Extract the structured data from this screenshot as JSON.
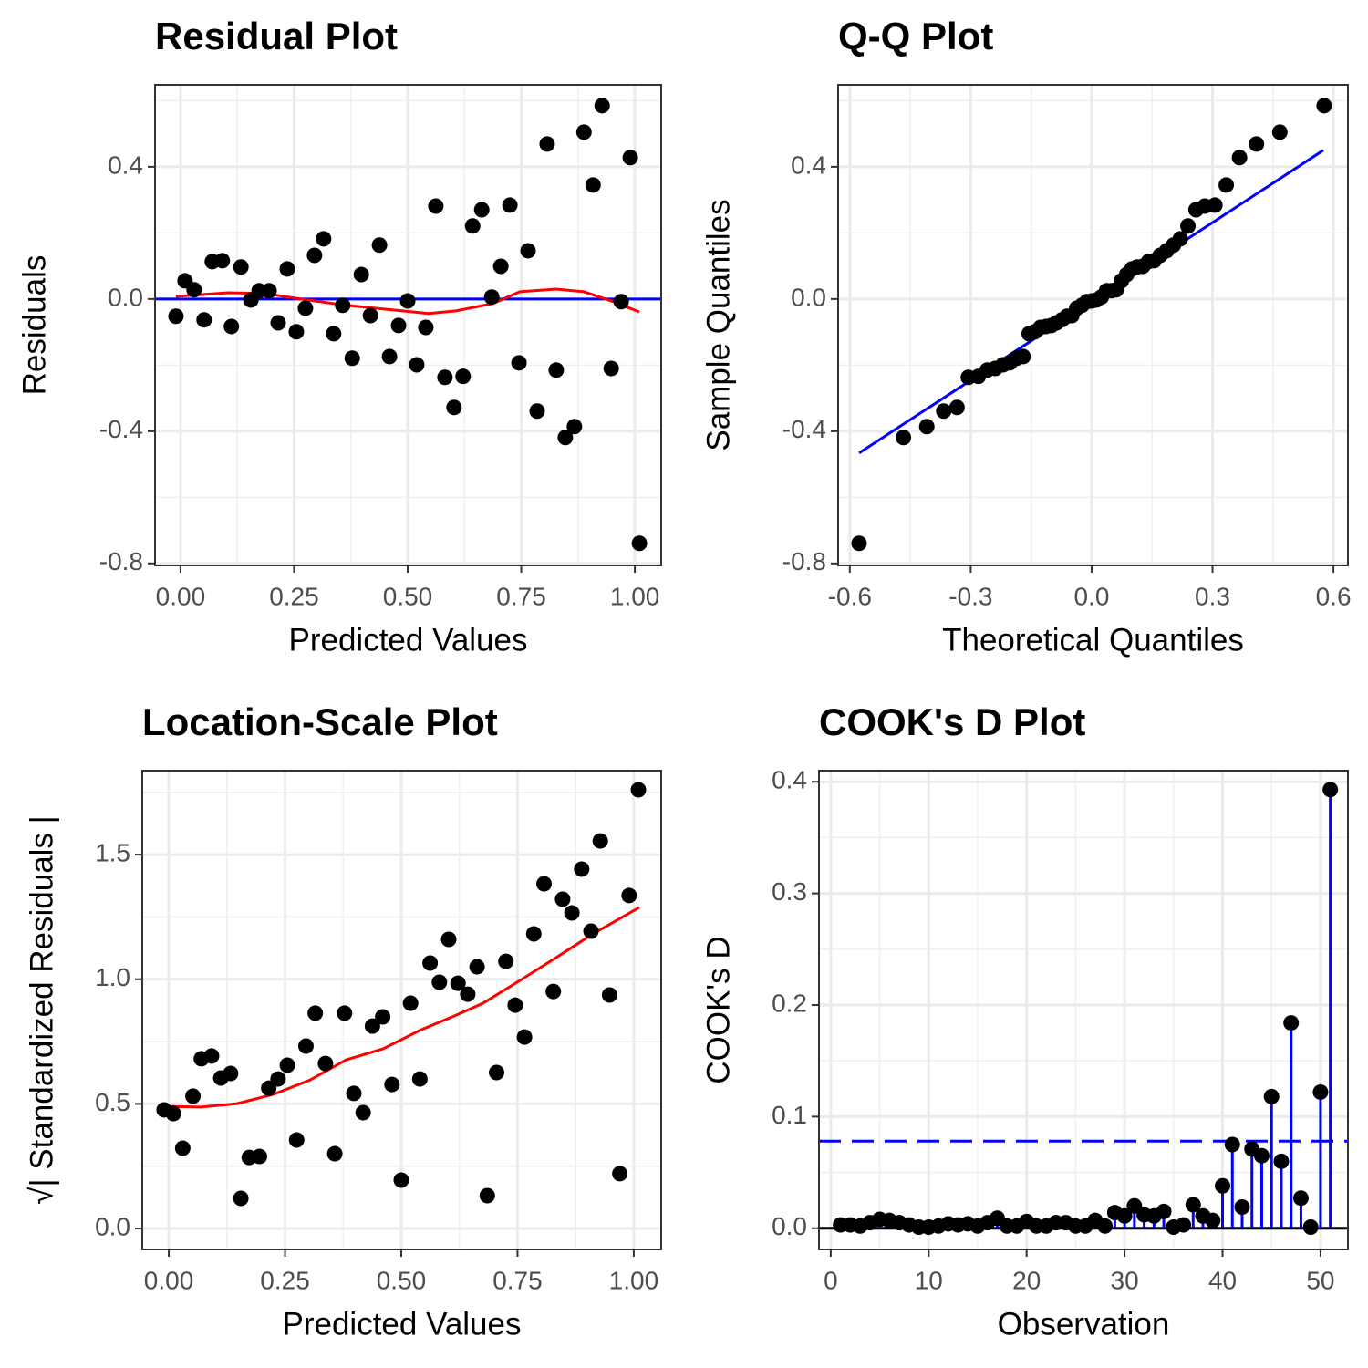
{
  "chart_data": [
    {
      "type": "scatter",
      "title": "Residual Plot",
      "xlabel": "Predicted Values",
      "ylabel": "Residuals",
      "xlim": [
        -0.056,
        1.058
      ],
      "ylim": [
        -0.806,
        0.648
      ],
      "xticks": [
        {
          "value": 0,
          "label": "0.00"
        },
        {
          "value": 0.25,
          "label": "0.25"
        },
        {
          "value": 0.5,
          "label": "0.50"
        },
        {
          "value": 0.75,
          "label": "0.75"
        },
        {
          "value": 1,
          "label": "1.00"
        }
      ],
      "yticks": [
        {
          "value": -0.8,
          "label": "-0.8"
        },
        {
          "value": -0.4,
          "label": "-0.4"
        },
        {
          "value": 0,
          "label": "0.0"
        },
        0.4
      ],
      "grid": true,
      "points": {
        "color": "#000000",
        "x": [
          -0.01,
          0.01,
          0.03,
          0.052,
          0.07,
          0.092,
          0.112,
          0.133,
          0.155,
          0.173,
          0.195,
          0.215,
          0.235,
          0.255,
          0.275,
          0.295,
          0.315,
          0.337,
          0.357,
          0.378,
          0.398,
          0.418,
          0.438,
          0.46,
          0.48,
          0.5,
          0.52,
          0.54,
          0.562,
          0.582,
          0.602,
          0.622,
          0.643,
          0.663,
          0.685,
          0.705,
          0.725,
          0.745,
          0.765,
          0.785,
          0.807,
          0.827,
          0.847,
          0.867,
          0.888,
          0.908,
          0.928,
          0.948,
          0.97,
          0.99,
          1.01
        ],
        "y": [
          -0.052,
          0.055,
          0.028,
          -0.063,
          0.113,
          0.116,
          -0.083,
          0.097,
          -0.003,
          0.025,
          0.025,
          -0.072,
          0.091,
          -0.099,
          -0.028,
          0.132,
          0.182,
          -0.105,
          -0.019,
          -0.179,
          0.074,
          -0.05,
          0.163,
          -0.174,
          -0.08,
          -0.006,
          -0.199,
          -0.086,
          0.281,
          -0.237,
          -0.328,
          -0.234,
          0.221,
          0.27,
          0.006,
          0.099,
          0.284,
          -0.193,
          0.146,
          -0.339,
          0.469,
          -0.215,
          -0.419,
          -0.386,
          0.505,
          0.345,
          0.585,
          -0.21,
          -0.008,
          0.428,
          -0.739
        ]
      },
      "hline": {
        "value": 0,
        "color": "#0000ff"
      },
      "lines": [
        {
          "color": "#ff0000",
          "x": [
            -0.01,
            0.105,
            0.185,
            0.265,
            0.365,
            0.466,
            0.546,
            0.606,
            0.687,
            0.747,
            0.827,
            0.888,
            0.948,
            1.01
          ],
          "y": [
            0.008,
            0.019,
            0.017,
            0,
            -0.019,
            -0.033,
            -0.044,
            -0.036,
            -0.014,
            0.022,
            0.03,
            0.022,
            -0.006,
            -0.039
          ]
        }
      ]
    },
    {
      "type": "scatter",
      "title": "Q-Q Plot",
      "xlabel": "Theoretical Quantiles",
      "ylabel": "Sample Quantiles",
      "xlim": [
        -0.629,
        0.636
      ],
      "ylim": [
        -0.806,
        0.648
      ],
      "xticks": [
        -0.6,
        -0.3,
        {
          "value": 0,
          "label": "0.0"
        },
        0.3,
        0.6
      ],
      "yticks": [
        {
          "value": -0.8,
          "label": "-0.8"
        },
        {
          "value": -0.4,
          "label": "-0.4"
        },
        {
          "value": 0,
          "label": "0.0"
        },
        0.4
      ],
      "grid": true,
      "points": {
        "color": "#000000",
        "x": [
          -0.577,
          -0.467,
          -0.409,
          -0.367,
          -0.334,
          -0.306,
          -0.281,
          -0.259,
          -0.239,
          -0.22,
          -0.203,
          -0.186,
          -0.17,
          -0.155,
          -0.141,
          -0.127,
          -0.113,
          -0.1,
          -0.087,
          -0.074,
          -0.061,
          -0.049,
          -0.037,
          -0.024,
          -0.012,
          0,
          0.012,
          0.024,
          0.037,
          0.049,
          0.061,
          0.074,
          0.087,
          0.1,
          0.113,
          0.127,
          0.141,
          0.155,
          0.17,
          0.186,
          0.203,
          0.22,
          0.239,
          0.259,
          0.281,
          0.306,
          0.334,
          0.367,
          0.409,
          0.467,
          0.577
        ],
        "y": [
          -0.739,
          -0.419,
          -0.386,
          -0.339,
          -0.328,
          -0.237,
          -0.234,
          -0.215,
          -0.21,
          -0.199,
          -0.193,
          -0.179,
          -0.174,
          -0.105,
          -0.099,
          -0.086,
          -0.083,
          -0.08,
          -0.072,
          -0.063,
          -0.052,
          -0.05,
          -0.028,
          -0.019,
          -0.008,
          -0.006,
          -0.003,
          0.006,
          0.025,
          0.025,
          0.028,
          0.055,
          0.074,
          0.091,
          0.097,
          0.099,
          0.113,
          0.116,
          0.132,
          0.146,
          0.163,
          0.182,
          0.221,
          0.27,
          0.281,
          0.284,
          0.345,
          0.428,
          0.469,
          0.505,
          0.585
        ]
      },
      "lines": [
        {
          "color": "#0000ff",
          "x": [
            -0.577,
            0.575
          ],
          "y": [
            -0.466,
            0.45
          ]
        }
      ]
    },
    {
      "type": "scatter",
      "title": "Location-Scale Plot",
      "xlabel": "Predicted Values",
      "ylabel": "√| Standardized Residuals |",
      "xlim": [
        -0.057,
        1.059
      ],
      "ylim": [
        -0.084,
        1.837
      ],
      "xticks": [
        {
          "value": 0,
          "label": "0.00"
        },
        {
          "value": 0.25,
          "label": "0.25"
        },
        {
          "value": 0.5,
          "label": "0.50"
        },
        {
          "value": 0.75,
          "label": "0.75"
        },
        {
          "value": 1,
          "label": "1.00"
        }
      ],
      "yticks": [
        {
          "value": 0,
          "label": "0.0"
        },
        0.5,
        {
          "value": 1,
          "label": "1.0"
        },
        1.5
      ],
      "grid": true,
      "points": {
        "color": "#000000",
        "x": [
          -0.01,
          0.01,
          0.03,
          0.052,
          0.07,
          0.092,
          0.112,
          0.133,
          0.155,
          0.173,
          0.195,
          0.215,
          0.235,
          0.255,
          0.275,
          0.295,
          0.315,
          0.337,
          0.357,
          0.378,
          0.398,
          0.418,
          0.438,
          0.46,
          0.48,
          0.5,
          0.52,
          0.54,
          0.562,
          0.582,
          0.602,
          0.622,
          0.643,
          0.663,
          0.685,
          0.705,
          0.725,
          0.745,
          0.765,
          0.785,
          0.807,
          0.827,
          0.847,
          0.867,
          0.888,
          0.908,
          0.928,
          0.948,
          0.97,
          0.99,
          1.01
        ],
        "y": [
          0.476,
          0.461,
          0.322,
          0.531,
          0.681,
          0.692,
          0.604,
          0.622,
          0.121,
          0.285,
          0.289,
          0.563,
          0.6,
          0.655,
          0.355,
          0.732,
          0.864,
          0.662,
          0.3,
          0.864,
          0.542,
          0.465,
          0.812,
          0.849,
          0.578,
          0.194,
          0.904,
          0.6,
          1.065,
          0.988,
          1.16,
          0.984,
          0.94,
          1.05,
          0.132,
          0.626,
          1.072,
          0.896,
          0.768,
          1.182,
          1.383,
          0.951,
          1.321,
          1.266,
          1.442,
          1.193,
          1.555,
          0.937,
          0.22,
          1.336,
          1.76
        ]
      },
      "lines": [
        {
          "color": "#ff0000",
          "x": [
            -0.01,
            0.069,
            0.147,
            0.225,
            0.304,
            0.382,
            0.461,
            0.539,
            0.618,
            0.676,
            0.755,
            0.833,
            0.912,
            1.012
          ],
          "y": [
            0.49,
            0.487,
            0.501,
            0.538,
            0.596,
            0.677,
            0.721,
            0.794,
            0.856,
            0.904,
            0.995,
            1.087,
            1.182,
            1.288
          ]
        }
      ]
    },
    {
      "type": "scatter",
      "title": "COOK's D Plot",
      "xlabel": "Observation",
      "ylabel": "COOK's D",
      "xlim": [
        -1.2,
        52.8
      ],
      "ylim": [
        -0.019,
        0.41
      ],
      "xticks": [
        0,
        10,
        20,
        30,
        40,
        50
      ],
      "yticks": [
        {
          "value": 0,
          "label": "0.0"
        },
        0.1,
        0.2,
        0.3,
        0.4
      ],
      "grid": true,
      "stems": true,
      "stem_color": "#0000ff",
      "threshold": {
        "value": 0.078,
        "color": "#0000ff"
      },
      "hline": {
        "value": 0,
        "color": "#000000"
      },
      "points": {
        "color": "#000000",
        "x": [
          1,
          2,
          3,
          4,
          5,
          6,
          7,
          8,
          9,
          10,
          11,
          12,
          13,
          14,
          15,
          16,
          17,
          18,
          19,
          20,
          21,
          22,
          23,
          24,
          25,
          26,
          27,
          28,
          29,
          30,
          31,
          32,
          33,
          34,
          35,
          36,
          37,
          38,
          39,
          40,
          41,
          42,
          43,
          44,
          45,
          46,
          47,
          48,
          49,
          50,
          51
        ],
        "y": [
          0.003,
          0.003,
          0.002,
          0.005,
          0.008,
          0.007,
          0.005,
          0.003,
          0.001,
          0.001,
          0.002,
          0.004,
          0.003,
          0.004,
          0.002,
          0.005,
          0.009,
          0.002,
          0.002,
          0.006,
          0.002,
          0.002,
          0.005,
          0.005,
          0.002,
          0.002,
          0.007,
          0.002,
          0.014,
          0.011,
          0.02,
          0.012,
          0.011,
          0.015,
          0.001,
          0.003,
          0.021,
          0.011,
          0.007,
          0.038,
          0.075,
          0.019,
          0.071,
          0.065,
          0.118,
          0.06,
          0.184,
          0.027,
          0.001,
          0.122,
          0.393
        ]
      }
    }
  ]
}
